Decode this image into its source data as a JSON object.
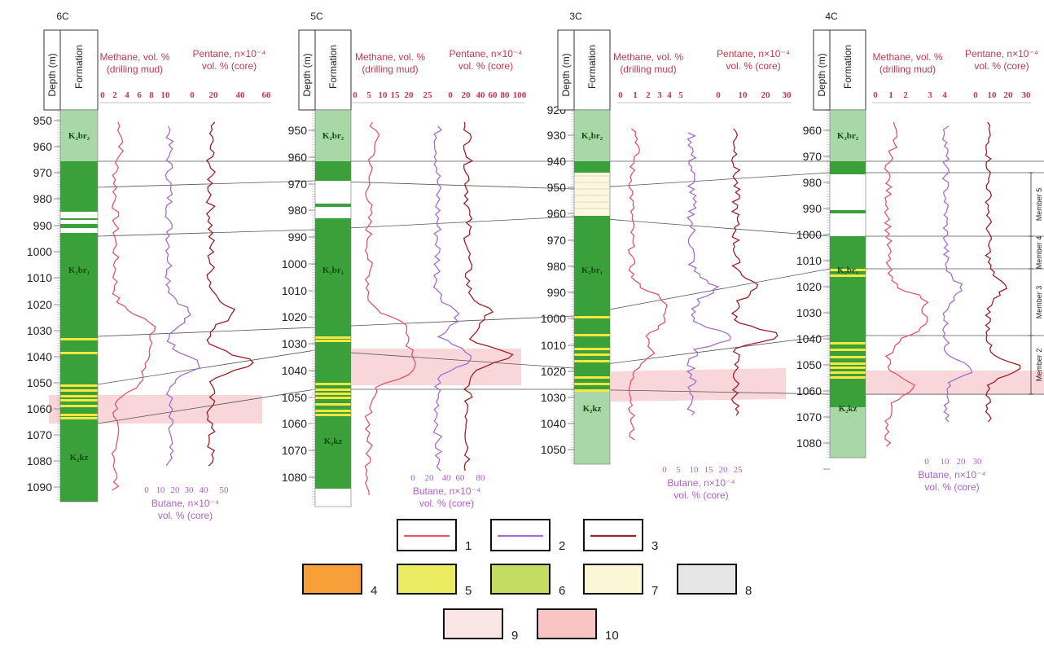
{
  "wells": [
    {
      "id": "6C",
      "depth_label": "Depth (m)",
      "formation_label": "Formation",
      "methane_title": [
        "Methane, vol. %",
        "(drilling mud)"
      ],
      "pentane_title": [
        "Pentane, n×10⁻⁴",
        "vol. % (core)"
      ],
      "butane_title": [
        "Butane, n×10⁻⁴",
        "vol. % (core)"
      ],
      "depth_ticks": [
        "950",
        "960",
        "970",
        "980",
        "990",
        "1000",
        "1010",
        "1020",
        "1030",
        "1040",
        "1050",
        "1060",
        "1070",
        "1080",
        "1090"
      ],
      "methane_ticks": [
        "0",
        "2",
        "4",
        "6",
        "8",
        "10"
      ],
      "pentane_ticks": [
        "0",
        "20",
        "40",
        "60"
      ],
      "butane_ticks": [
        "0",
        "10",
        "20",
        "30",
        "40",
        "50"
      ],
      "formations": [
        "K₂br₂",
        "K₂br₁",
        "K₂kz"
      ]
    },
    {
      "id": "5C",
      "depth_label": "Depth (m)",
      "formation_label": "Formation",
      "methane_title": [
        "Methane, vol. %",
        "(drilling mud)"
      ],
      "pentane_title": [
        "Pentane, n×10⁻⁴",
        "vol. % (core)"
      ],
      "butane_title": [
        "Butane, n×10⁻⁴",
        "vol. % (core)"
      ],
      "depth_ticks": [
        "950",
        "960",
        "970",
        "980",
        "990",
        "1000",
        "1010",
        "1020",
        "1030",
        "1040",
        "1050",
        "1060",
        "1070",
        "1080"
      ],
      "methane_ticks": [
        "0",
        "5",
        "10",
        "15",
        "20",
        "25"
      ],
      "pentane_ticks": [
        "0",
        "20",
        "40",
        "60",
        "80",
        "100"
      ],
      "butane_ticks": [
        "0",
        "20",
        "40",
        "60",
        "80"
      ],
      "formations": [
        "K₂br₂",
        "K₂br₁",
        "K₂kz"
      ]
    },
    {
      "id": "3C",
      "depth_label": "Depth (m)",
      "formation_label": "Formation",
      "methane_title": [
        "Methane, vol. %",
        "(drilling mud)"
      ],
      "pentane_title": [
        "Pentane, n×10⁻⁴",
        "vol. % (core)"
      ],
      "butane_title": [
        "Butane, n×10⁻⁴",
        "vol. % (core)"
      ],
      "depth_ticks": [
        "920",
        "930",
        "940",
        "950",
        "960",
        "970",
        "980",
        "990",
        "1000",
        "1010",
        "1020",
        "1030",
        "1040",
        "1050"
      ],
      "methane_ticks": [
        "0",
        "1",
        "2",
        "3",
        "4",
        "5"
      ],
      "pentane_ticks": [
        "0",
        "10",
        "20",
        "30"
      ],
      "butane_ticks": [
        "0",
        "5",
        "10",
        "15",
        "20",
        "25"
      ],
      "formations": [
        "K₂br₂",
        "K₂br₁",
        "K₂kz"
      ]
    },
    {
      "id": "4C",
      "depth_label": "Depth (m)",
      "formation_label": "Formation",
      "methane_title": [
        "Methane, vol. %",
        "(drilling mud)"
      ],
      "pentane_title": [
        "Pentane, n×10⁻⁴",
        "vol. % (core)"
      ],
      "butane_title": [
        "Butane, n×10⁻⁴",
        "vol. % (core)"
      ],
      "depth_ticks": [
        "960",
        "970",
        "980",
        "990",
        "1000",
        "1010",
        "1020",
        "1030",
        "1040",
        "1050",
        "1060",
        "1070",
        "1080"
      ],
      "methane_ticks": [
        "0",
        "1",
        "2",
        "3",
        "4"
      ],
      "pentane_ticks": [
        "0",
        "10",
        "20",
        "30"
      ],
      "butane_ticks": [
        "0",
        "10",
        "20",
        "30"
      ],
      "formations": [
        "K₂br₂",
        "K₂br₁",
        "K₂kz"
      ],
      "members": [
        "Member 5",
        "Member 4",
        "Member 3",
        "Member 2"
      ]
    }
  ],
  "legend": [
    {
      "label": "1",
      "kind": "line",
      "color": "#e0566c"
    },
    {
      "label": "2",
      "kind": "line",
      "color": "#a070d0"
    },
    {
      "label": "3",
      "kind": "line",
      "color": "#9c1f2c"
    },
    {
      "label": "4",
      "kind": "fill",
      "color": "#f7a03a"
    },
    {
      "label": "5",
      "kind": "fill",
      "color": "#ecec62"
    },
    {
      "label": "6",
      "kind": "fill",
      "color": "#c5dc62"
    },
    {
      "label": "7",
      "kind": "fill",
      "color": "#fbf7d6"
    },
    {
      "label": "8",
      "kind": "fill",
      "color": "#e6e6e6"
    },
    {
      "label": "9",
      "kind": "fill",
      "color": "#fbe6e6"
    },
    {
      "label": "10",
      "kind": "fill",
      "color": "#f8c4c4"
    }
  ],
  "colors": {
    "methane": "#e0566c",
    "butane": "#a070d0",
    "pentane": "#9c1f2c",
    "title_methane": "#c0394d",
    "title_butane": "#b060c8",
    "green": "#3aa13a",
    "light_green": "#a8d8a8",
    "yellow": "#ffe640",
    "pink_band": "#f6c8cc"
  }
}
